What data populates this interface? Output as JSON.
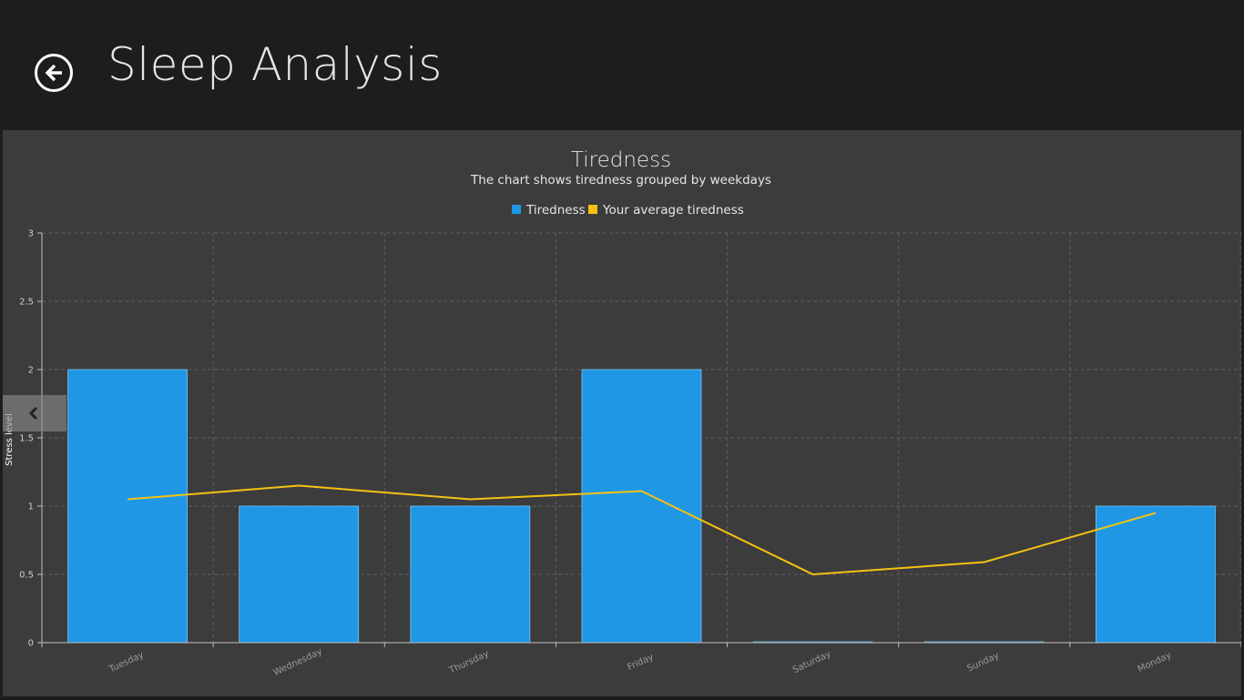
{
  "header": {
    "title": "Sleep Analysis",
    "back_icon": "arrow-left-circle-icon"
  },
  "side_tab": {
    "icon": "chevron-left-icon"
  },
  "colors": {
    "background": "#1d1d1d",
    "panel": "#3c3c3c",
    "bar": "#1f97e4",
    "line": "#f5c211",
    "text": "#e6e6e6"
  },
  "chart_data": {
    "type": "bar",
    "title": "Tiredness",
    "subtitle": "The chart shows tiredness grouped by weekdays",
    "ylabel": "Stress level",
    "xlabel": "",
    "ylim": [
      0,
      3
    ],
    "yticks": [
      "0",
      "0.5",
      "1",
      "1.5",
      "2",
      "2.5",
      "3"
    ],
    "grid": true,
    "legend_position": "top-center",
    "categories": [
      "Tuesday",
      "Wednesday",
      "Thursday",
      "Friday",
      "Saturday",
      "Sunday",
      "Monday"
    ],
    "series": [
      {
        "name": "Tiredness",
        "type": "bar",
        "values": [
          2,
          1,
          1,
          2,
          0,
          0,
          1
        ]
      },
      {
        "name": "Your average tiredness",
        "type": "line",
        "values": [
          1.05,
          1.15,
          1.05,
          1.11,
          0.5,
          0.59,
          0.95
        ]
      }
    ]
  }
}
